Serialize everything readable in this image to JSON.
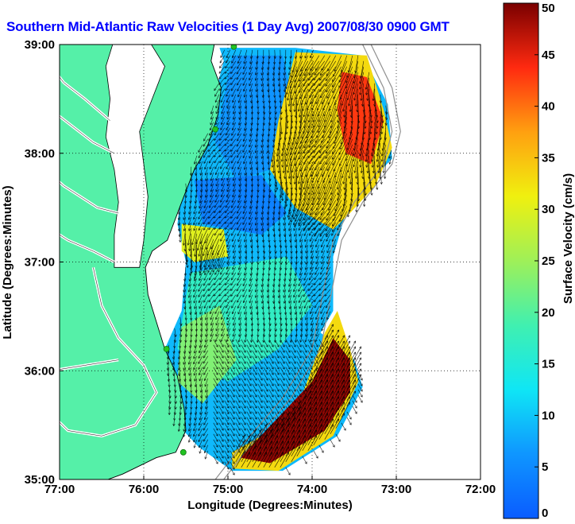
{
  "title": "Southern Mid-Atlantic Raw Velocities (1 Day Avg) 2007/08/30 0900 GMT",
  "map": {
    "xlabel": "Longitude (Degrees:Minutes)",
    "ylabel": "Latitude (Degrees:Minutes)",
    "lon_ticks": [
      "77:00",
      "76:00",
      "75:00",
      "74:00",
      "73:00",
      "72:00"
    ],
    "lat_ticks": [
      "35:00",
      "36:00",
      "37:00",
      "38:00",
      "39:00"
    ],
    "lon_range": [
      -77,
      -72
    ],
    "lat_range": [
      35,
      39
    ],
    "land_color": "#55f0a8",
    "ocean_color": "#ffffff",
    "coast_color": "#000000",
    "isobath_color": "#909090",
    "station_color": "#22c422",
    "stations": [
      {
        "lon": -74.93,
        "lat": 38.98
      },
      {
        "lon": -75.15,
        "lat": 38.22
      },
      {
        "lon": -75.73,
        "lat": 36.2
      },
      {
        "lon": -75.53,
        "lat": 35.25
      }
    ],
    "high_speed_regions": [
      {
        "name": "north-band",
        "points": [
          [
            -74.2,
            38.93
          ],
          [
            -73.35,
            38.9
          ],
          [
            -73.15,
            38.4
          ],
          [
            -73.05,
            38.05
          ],
          [
            -73.25,
            37.7
          ],
          [
            -73.55,
            37.45
          ],
          [
            -73.75,
            37.3
          ],
          [
            -74.2,
            37.5
          ],
          [
            -74.5,
            37.85
          ],
          [
            -74.4,
            38.3
          ]
        ]
      },
      {
        "name": "south-band",
        "points": [
          [
            -74.2,
            35.6
          ],
          [
            -73.85,
            36.35
          ],
          [
            -73.7,
            36.55
          ],
          [
            -73.55,
            36.2
          ],
          [
            -73.45,
            35.9
          ],
          [
            -73.75,
            35.4
          ],
          [
            -74.4,
            35.08
          ],
          [
            -74.95,
            35.1
          ],
          [
            -74.95,
            35.25
          ],
          [
            -74.6,
            35.4
          ]
        ]
      },
      {
        "name": "west-band",
        "points": [
          [
            -75.55,
            37.35
          ],
          [
            -75.05,
            37.3
          ],
          [
            -75.0,
            37.05
          ],
          [
            -75.4,
            37.0
          ],
          [
            -75.55,
            37.1
          ]
        ]
      }
    ]
  },
  "colorbar": {
    "label": "Surface Velocity (cm/s)",
    "ticks": [
      "0",
      "5",
      "10",
      "15",
      "20",
      "25",
      "30",
      "35",
      "40",
      "45",
      "50"
    ],
    "min": 0,
    "max": 50
  }
}
